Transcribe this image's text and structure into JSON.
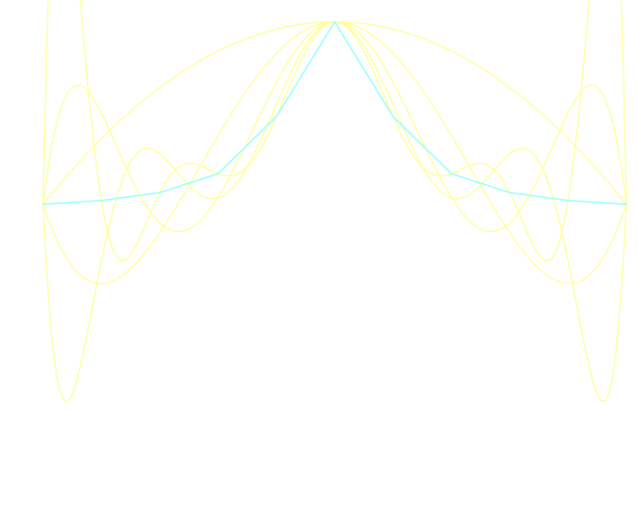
{
  "chart_data": {
    "type": "line",
    "title": "",
    "xlabel": "",
    "ylabel": "",
    "grid": false,
    "legend": "none",
    "xlim": [
      -1,
      1
    ],
    "ylim": [
      -1.06,
      1.02
    ],
    "function": "1/(1+25x^2)",
    "series": [
      {
        "type": "interpolant",
        "nodes": 3,
        "nodes_spacing": "equispaced",
        "color": "#ffff99"
      },
      {
        "type": "interpolant",
        "nodes": 5,
        "nodes_spacing": "equispaced",
        "color": "#ffff99"
      },
      {
        "type": "interpolant",
        "nodes": 7,
        "nodes_spacing": "equispaced",
        "color": "#ffff99"
      },
      {
        "type": "interpolant",
        "nodes": 9,
        "nodes_spacing": "equispaced",
        "color": "#ffff99"
      },
      {
        "type": "interpolant",
        "nodes": 11,
        "nodes_spacing": "equispaced",
        "color": "#ffff99"
      },
      {
        "type": "exact",
        "color": "#99ffff",
        "x": [
          -1,
          -0.8,
          -0.6,
          -0.4,
          -0.2,
          0,
          0.2,
          0.4,
          0.6,
          0.8,
          1
        ],
        "y": [
          0.0385,
          0.0588,
          0.1,
          0.2,
          0.5,
          1,
          0.5,
          0.2,
          0.1,
          0.0588,
          0.0385
        ]
      }
    ]
  }
}
